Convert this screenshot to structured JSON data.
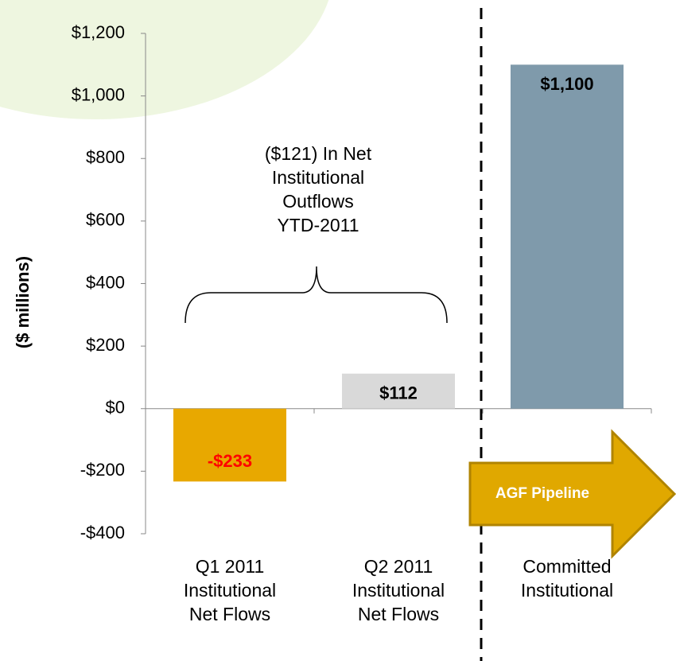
{
  "chart_data": {
    "type": "bar",
    "y_label": "($ millions)",
    "categories": [
      "Q1 2011\nInstitutional\nNet Flows",
      "Q2 2011\nInstitutional\nNet Flows",
      "Committed\nInstitutional"
    ],
    "values": [
      -233,
      112,
      1100
    ],
    "value_labels": [
      "-$233",
      "$112",
      "$1,100"
    ],
    "colors": [
      "#e8a800",
      "#d9d9d9",
      "#7f9aab"
    ],
    "value_label_colors": [
      "#ff0000",
      "#000000",
      "#000000"
    ],
    "ylim": [
      -400,
      1200
    ],
    "yticks": [
      {
        "value": -400,
        "label": "-$400"
      },
      {
        "value": -200,
        "label": "-$200"
      },
      {
        "value": 0,
        "label": "$0"
      },
      {
        "value": 200,
        "label": "$200"
      },
      {
        "value": 400,
        "label": "$400"
      },
      {
        "value": 600,
        "label": "$600"
      },
      {
        "value": 800,
        "label": "$800"
      },
      {
        "value": 1000,
        "label": "$1,000"
      },
      {
        "value": 1200,
        "label": "$1,200"
      }
    ],
    "annotations": [
      "($121) In Net\nInstitutional\nOutflows\nYTD-2011",
      "AGF Pipeline"
    ]
  }
}
